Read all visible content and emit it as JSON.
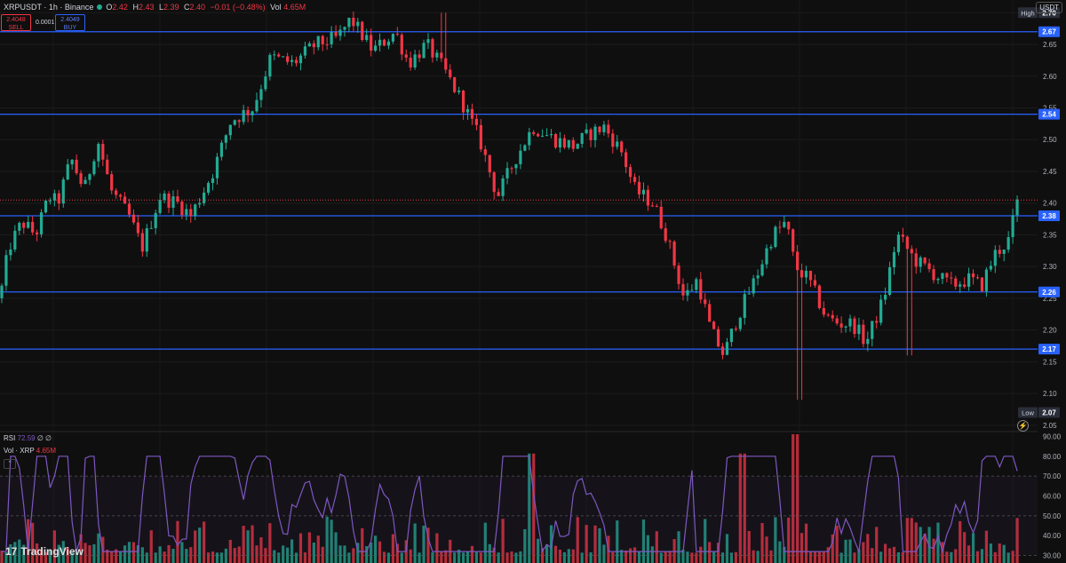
{
  "header": {
    "symbol": "XRPUSDT · 1h · Binance",
    "ohlc": [
      {
        "k": "O",
        "v": "2.42"
      },
      {
        "k": "H",
        "v": "2.43"
      },
      {
        "k": "L",
        "v": "2.39"
      },
      {
        "k": "C",
        "v": "2.40"
      }
    ],
    "change": "−0.01 (−0.48%)",
    "vol_label": "Vol",
    "vol_value": "4.65M"
  },
  "trade": {
    "sell_price": "2.4048",
    "sell_label": "SELL",
    "spread": "0.0001",
    "buy_price": "2.4049",
    "buy_label": "BUY"
  },
  "currency": "USDT",
  "indicators": {
    "rsi_name": "RSI",
    "rsi_value": "72.59",
    "rsi_extra": "∅ ∅",
    "vol_name": "Vol · XRP",
    "vol_value": "4.65M",
    "collapse": "⌃"
  },
  "branding": "TradingView",
  "icons": [
    "tradingview-logo-icon",
    "lightning-icon",
    "collapse-chevron-icon"
  ],
  "colors": {
    "background": "#0f0f0f",
    "up": "#22ab94",
    "down": "#f23645",
    "level_line": "#2962ff",
    "rsi": "#7e57c2",
    "last_price": "#f23645"
  },
  "chart_data": {
    "type": "candlestick",
    "interval": "1h",
    "ylim": [
      2.04,
      2.72
    ],
    "price_ticks": [
      "2.70",
      "2.65",
      "2.60",
      "2.55",
      "2.50",
      "2.45",
      "2.40",
      "2.35",
      "2.30",
      "2.25",
      "2.20",
      "2.15",
      "2.10",
      "2.05"
    ],
    "levels": [
      {
        "price": 2.67,
        "label": "2.67"
      },
      {
        "price": 2.54,
        "label": "2.54"
      },
      {
        "price": 2.38,
        "label": "2.38"
      },
      {
        "price": 2.26,
        "label": "2.26"
      },
      {
        "price": 2.17,
        "label": "2.17"
      }
    ],
    "high": {
      "label": "High",
      "value": "2.70",
      "price": 2.7
    },
    "low": {
      "label": "Low",
      "value": "2.07",
      "price": 2.07
    },
    "last_price": 2.4048,
    "close_anchors": [
      [
        0,
        2.25
      ],
      [
        10,
        2.33
      ],
      [
        25,
        2.37
      ],
      [
        40,
        2.35
      ],
      [
        55,
        2.41
      ],
      [
        65,
        2.4
      ],
      [
        80,
        2.47
      ],
      [
        95,
        2.42
      ],
      [
        110,
        2.5
      ],
      [
        125,
        2.42
      ],
      [
        145,
        2.38
      ],
      [
        160,
        2.33
      ],
      [
        180,
        2.41
      ],
      [
        200,
        2.4
      ],
      [
        215,
        2.38
      ],
      [
        240,
        2.45
      ],
      [
        260,
        2.53
      ],
      [
        285,
        2.55
      ],
      [
        305,
        2.63
      ],
      [
        330,
        2.62
      ],
      [
        355,
        2.65
      ],
      [
        380,
        2.66
      ],
      [
        395,
        2.69
      ],
      [
        420,
        2.64
      ],
      [
        445,
        2.67
      ],
      [
        460,
        2.62
      ],
      [
        480,
        2.65
      ],
      [
        500,
        2.61
      ],
      [
        520,
        2.56
      ],
      [
        540,
        2.5
      ],
      [
        560,
        2.41
      ],
      [
        580,
        2.47
      ],
      [
        600,
        2.52
      ],
      [
        625,
        2.5
      ],
      [
        645,
        2.49
      ],
      [
        665,
        2.51
      ],
      [
        680,
        2.52
      ],
      [
        700,
        2.48
      ],
      [
        715,
        2.42
      ],
      [
        735,
        2.4
      ],
      [
        750,
        2.35
      ],
      [
        770,
        2.25
      ],
      [
        785,
        2.28
      ],
      [
        800,
        2.2
      ],
      [
        815,
        2.16
      ],
      [
        830,
        2.22
      ],
      [
        850,
        2.28
      ],
      [
        870,
        2.35
      ],
      [
        885,
        2.37
      ],
      [
        895,
        2.3
      ],
      [
        910,
        2.28
      ],
      [
        930,
        2.22
      ],
      [
        945,
        2.21
      ],
      [
        960,
        2.21
      ],
      [
        975,
        2.18
      ],
      [
        995,
        2.25
      ],
      [
        1010,
        2.35
      ],
      [
        1030,
        2.31
      ],
      [
        1050,
        2.29
      ],
      [
        1070,
        2.27
      ],
      [
        1090,
        2.28
      ],
      [
        1105,
        2.27
      ],
      [
        1120,
        2.32
      ],
      [
        1135,
        2.34
      ],
      [
        1145,
        2.4
      ]
    ],
    "spike_lows": [
      [
        900,
        2.09
      ],
      [
        1025,
        2.16
      ]
    ],
    "spike_highs": [
      [
        500,
        2.7
      ]
    ],
    "rsi": {
      "ticks": [
        "90.00",
        "80.00",
        "70.00",
        "60.00",
        "50.00",
        "40.00",
        "30.00"
      ],
      "ylim": [
        28,
        92
      ],
      "overbought": 70,
      "oversold": 30,
      "last": 72.59
    },
    "volume": {
      "spikes": [
        [
          600,
          0.85
        ],
        [
          835,
          0.85
        ],
        [
          895,
          1.0
        ],
        [
          1025,
          0.35
        ]
      ]
    }
  }
}
